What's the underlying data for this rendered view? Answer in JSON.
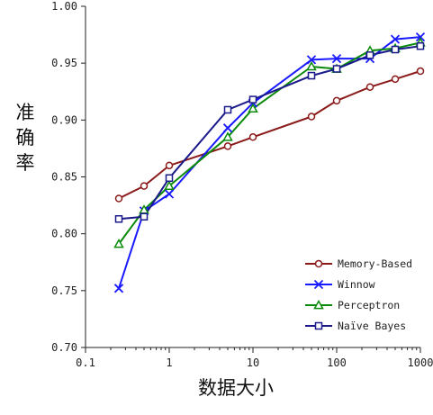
{
  "chart_data": {
    "type": "line",
    "title": "",
    "xlabel": "数据大小",
    "ylabel": "准确率",
    "xscale": "log",
    "xlim": [
      0.1,
      1000
    ],
    "ylim": [
      0.7,
      1.0
    ],
    "x_ticks": [
      "0.1",
      "1",
      "10",
      "100",
      "1000"
    ],
    "y_ticks": [
      "0.70",
      "0.75",
      "0.80",
      "0.85",
      "0.90",
      "0.95",
      "1.00"
    ],
    "legend_position": "bottom-right",
    "grid": false,
    "series": [
      {
        "name": "Memory-Based",
        "color": "#8b1a1a",
        "marker": "circle",
        "x": [
          0.25,
          0.5,
          1,
          5,
          10,
          50,
          100,
          250,
          500,
          1000
        ],
        "y": [
          0.831,
          0.842,
          0.86,
          0.877,
          0.885,
          0.903,
          0.917,
          0.929,
          0.936,
          0.943
        ]
      },
      {
        "name": "Winnow",
        "color": "#1a1aff",
        "marker": "x",
        "x": [
          0.25,
          0.5,
          1,
          5,
          10,
          50,
          100,
          250,
          500,
          1000
        ],
        "y": [
          0.752,
          0.82,
          0.835,
          0.893,
          0.915,
          0.953,
          0.954,
          0.954,
          0.971,
          0.973
        ]
      },
      {
        "name": "Perceptron",
        "color": "#0a8a0a",
        "marker": "triangle",
        "x": [
          0.25,
          0.5,
          1,
          5,
          10,
          50,
          100,
          250,
          500,
          1000
        ],
        "y": [
          0.791,
          0.821,
          0.842,
          0.885,
          0.91,
          0.947,
          0.945,
          0.961,
          0.963,
          0.968
        ]
      },
      {
        "name": "Naïve Bayes",
        "color": "#1a1a8b",
        "marker": "square",
        "x": [
          0.25,
          0.5,
          1,
          5,
          10,
          50,
          100,
          250,
          500,
          1000
        ],
        "y": [
          0.813,
          0.815,
          0.849,
          0.909,
          0.918,
          0.939,
          0.945,
          0.957,
          0.962,
          0.965
        ]
      }
    ]
  }
}
